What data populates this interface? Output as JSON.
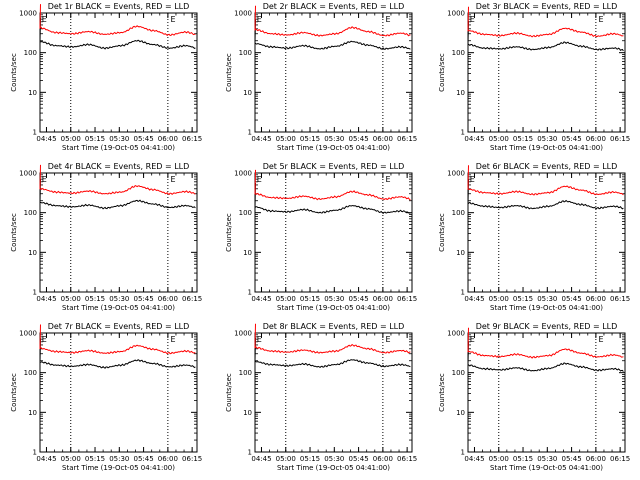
{
  "window": {
    "title": ""
  },
  "colors": {
    "events": "#000000",
    "lld": "#ff0000",
    "axis": "#000000",
    "background": "#ffffff"
  },
  "chart_data": [
    {
      "type": "line",
      "title": "Det 1r BLACK = Events, RED = LLD",
      "xlabel": "Start Time (19-Oct-05 04:41:00)",
      "ylabel": "Counts/sec",
      "x_ticks": [
        "04:45",
        "05:00",
        "05:15",
        "05:30",
        "05:45",
        "06:00",
        "06:15"
      ],
      "y_ticks": [
        "1",
        "10",
        "100",
        "1000"
      ],
      "ylim": [
        1,
        1000
      ],
      "yscale": "log",
      "x_minutes": [
        0,
        10,
        20,
        30,
        40,
        50,
        60,
        70,
        80,
        90,
        100
      ],
      "series": [
        {
          "name": "",
          "color": "#000000",
          "values": [
            190,
            150,
            140,
            160,
            130,
            150,
            200,
            160,
            130,
            150,
            120
          ]
        },
        {
          "name": "",
          "color": "#ff0000",
          "values": [
            420,
            320,
            300,
            340,
            290,
            320,
            460,
            360,
            280,
            330,
            260
          ]
        }
      ],
      "marker_labels": [
        "E",
        "E"
      ]
    },
    {
      "type": "line",
      "title": "Det 2r BLACK = Events, RED = LLD",
      "xlabel": "Start Time (19-Oct-05 04:41:00)",
      "ylabel": "Counts/sec",
      "x_ticks": [
        "04:45",
        "05:00",
        "05:15",
        "05:30",
        "05:45",
        "06:00",
        "06:15"
      ],
      "y_ticks": [
        "1",
        "10",
        "100",
        "1000"
      ],
      "ylim": [
        1,
        1000
      ],
      "yscale": "log",
      "x_minutes": [
        0,
        10,
        20,
        30,
        40,
        50,
        60,
        70,
        80,
        90,
        100
      ],
      "series": [
        {
          "name": "",
          "color": "#000000",
          "values": [
            170,
            140,
            130,
            150,
            125,
            145,
            190,
            155,
            125,
            140,
            115
          ]
        },
        {
          "name": "",
          "color": "#ff0000",
          "values": [
            380,
            300,
            280,
            320,
            270,
            300,
            430,
            340,
            270,
            310,
            250
          ]
        }
      ],
      "marker_labels": [
        "E",
        "E"
      ]
    },
    {
      "type": "line",
      "title": "Det 3r BLACK = Events, RED = LLD",
      "xlabel": "Start Time (19-Oct-05 04:41:00)",
      "ylabel": "Counts/sec",
      "x_ticks": [
        "04:45",
        "05:00",
        "05:15",
        "05:30",
        "05:45",
        "06:00",
        "06:15"
      ],
      "y_ticks": [
        "1",
        "10",
        "100",
        "1000"
      ],
      "ylim": [
        1,
        1000
      ],
      "yscale": "log",
      "x_minutes": [
        0,
        10,
        20,
        30,
        40,
        50,
        60,
        70,
        80,
        90,
        100
      ],
      "series": [
        {
          "name": "",
          "color": "#000000",
          "values": [
            160,
            130,
            125,
            140,
            120,
            135,
            180,
            145,
            120,
            130,
            105
          ]
        },
        {
          "name": "",
          "color": "#ff0000",
          "values": [
            360,
            290,
            270,
            310,
            260,
            290,
            410,
            330,
            260,
            300,
            240
          ]
        }
      ],
      "marker_labels": [
        "E",
        "E"
      ]
    },
    {
      "type": "line",
      "title": "Det 4r BLACK = Events, RED = LLD",
      "xlabel": "Start Time (19-Oct-05 04:41:00)",
      "ylabel": "Counts/sec",
      "x_ticks": [
        "04:45",
        "05:00",
        "05:15",
        "05:30",
        "05:45",
        "06:00",
        "06:15"
      ],
      "y_ticks": [
        "1",
        "10",
        "100",
        "1000"
      ],
      "ylim": [
        1,
        1000
      ],
      "yscale": "log",
      "x_minutes": [
        0,
        10,
        20,
        30,
        40,
        50,
        60,
        70,
        80,
        90,
        100
      ],
      "series": [
        {
          "name": "",
          "color": "#000000",
          "values": [
            180,
            150,
            140,
            155,
            130,
            150,
            200,
            165,
            135,
            150,
            125
          ]
        },
        {
          "name": "",
          "color": "#ff0000",
          "values": [
            400,
            330,
            310,
            350,
            300,
            330,
            470,
            380,
            300,
            340,
            280
          ]
        }
      ],
      "marker_labels": [
        "E",
        "E"
      ]
    },
    {
      "type": "line",
      "title": "Det 5r BLACK = Events, RED = LLD",
      "xlabel": "Start Time (19-Oct-05 04:41:00)",
      "ylabel": "Counts/sec",
      "x_ticks": [
        "04:45",
        "05:00",
        "05:15",
        "05:30",
        "05:45",
        "06:00",
        "06:15"
      ],
      "y_ticks": [
        "1",
        "10",
        "100",
        "1000"
      ],
      "ylim": [
        1,
        1000
      ],
      "yscale": "log",
      "x_minutes": [
        0,
        10,
        20,
        30,
        40,
        50,
        60,
        70,
        80,
        90,
        100
      ],
      "series": [
        {
          "name": "",
          "color": "#000000",
          "values": [
            140,
            110,
            105,
            120,
            100,
            115,
            150,
            125,
            100,
            110,
            90
          ]
        },
        {
          "name": "",
          "color": "#ff0000",
          "values": [
            300,
            240,
            230,
            260,
            220,
            250,
            340,
            280,
            220,
            250,
            200
          ]
        }
      ],
      "marker_labels": [
        "E",
        "E"
      ]
    },
    {
      "type": "line",
      "title": "Det 6r BLACK = Events, RED = LLD",
      "xlabel": "Start Time (19-Oct-05 04:41:00)",
      "ylabel": "Counts/sec",
      "x_ticks": [
        "04:45",
        "05:00",
        "05:15",
        "05:30",
        "05:45",
        "06:00",
        "06:15"
      ],
      "y_ticks": [
        "1",
        "10",
        "100",
        "1000"
      ],
      "ylim": [
        1,
        1000
      ],
      "yscale": "log",
      "x_minutes": [
        0,
        10,
        20,
        30,
        40,
        50,
        60,
        70,
        80,
        90,
        100
      ],
      "series": [
        {
          "name": "",
          "color": "#000000",
          "values": [
            175,
            145,
            135,
            150,
            128,
            145,
            195,
            160,
            130,
            145,
            120
          ]
        },
        {
          "name": "",
          "color": "#ff0000",
          "values": [
            390,
            320,
            300,
            340,
            290,
            320,
            460,
            370,
            290,
            330,
            270
          ]
        }
      ],
      "marker_labels": [
        "E",
        "E"
      ]
    },
    {
      "type": "line",
      "title": "Det 7r BLACK = Events, RED = LLD",
      "xlabel": "Start Time (19-Oct-05 04:41:00)",
      "ylabel": "Counts/sec",
      "x_ticks": [
        "04:45",
        "05:00",
        "05:15",
        "05:30",
        "05:45",
        "06:00",
        "06:15"
      ],
      "y_ticks": [
        "1",
        "10",
        "100",
        "1000"
      ],
      "ylim": [
        1,
        1000
      ],
      "yscale": "log",
      "x_minutes": [
        0,
        10,
        20,
        30,
        40,
        50,
        60,
        70,
        80,
        90,
        100
      ],
      "series": [
        {
          "name": "",
          "color": "#000000",
          "values": [
            185,
            155,
            145,
            160,
            135,
            155,
            205,
            170,
            140,
            155,
            130
          ]
        },
        {
          "name": "",
          "color": "#ff0000",
          "values": [
            410,
            340,
            320,
            360,
            310,
            340,
            480,
            390,
            310,
            350,
            290
          ]
        }
      ],
      "marker_labels": [
        "E",
        "E"
      ]
    },
    {
      "type": "line",
      "title": "Det 8r BLACK = Events, RED = LLD",
      "xlabel": "Start Time (19-Oct-05 04:41:00)",
      "ylabel": "Counts/sec",
      "x_ticks": [
        "04:45",
        "05:00",
        "05:15",
        "05:30",
        "05:45",
        "06:00",
        "06:15"
      ],
      "y_ticks": [
        "1",
        "10",
        "100",
        "1000"
      ],
      "ylim": [
        1,
        1000
      ],
      "yscale": "log",
      "x_minutes": [
        0,
        10,
        20,
        30,
        40,
        50,
        60,
        70,
        80,
        90,
        100
      ],
      "series": [
        {
          "name": "",
          "color": "#000000",
          "values": [
            190,
            160,
            150,
            165,
            140,
            160,
            210,
            175,
            145,
            160,
            135
          ]
        },
        {
          "name": "",
          "color": "#ff0000",
          "values": [
            430,
            350,
            330,
            370,
            320,
            350,
            490,
            400,
            320,
            360,
            300
          ]
        }
      ],
      "marker_labels": [
        "E",
        "E"
      ]
    },
    {
      "type": "line",
      "title": "Det 9r BLACK = Events, RED = LLD",
      "xlabel": "Start Time (19-Oct-05 04:41:00)",
      "ylabel": "Counts/sec",
      "x_ticks": [
        "04:45",
        "05:00",
        "05:15",
        "05:30",
        "05:45",
        "06:00",
        "06:15"
      ],
      "y_ticks": [
        "1",
        "10",
        "100",
        "1000"
      ],
      "ylim": [
        1,
        1000
      ],
      "yscale": "log",
      "x_minutes": [
        0,
        10,
        20,
        30,
        40,
        50,
        60,
        70,
        80,
        90,
        100
      ],
      "series": [
        {
          "name": "",
          "color": "#000000",
          "values": [
            155,
            125,
            118,
            132,
            112,
            128,
            170,
            140,
            115,
            125,
            100
          ]
        },
        {
          "name": "",
          "color": "#ff0000",
          "values": [
            340,
            270,
            255,
            290,
            245,
            270,
            390,
            310,
            250,
            280,
            225
          ]
        }
      ],
      "marker_labels": [
        "E",
        "E"
      ]
    }
  ]
}
